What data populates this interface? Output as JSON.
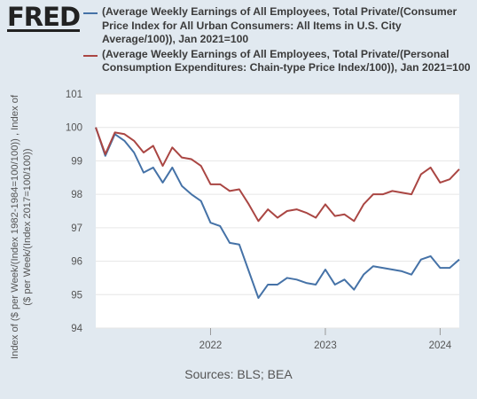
{
  "header": {
    "logo_text": "FRED"
  },
  "legend": [
    {
      "label": "(Average Weekly Earnings of All Employees, Total Private/(Consumer Price Index for All Urban Consumers: All Items in U.S. City Average/100)), Jan 2021=100",
      "color": "#4572a7"
    },
    {
      "label": "(Average Weekly Earnings of All Employees, Total Private/(Personal Consumption Expenditures: Chain-type Price Index/100)), Jan 2021=100",
      "color": "#aa4643"
    }
  ],
  "footer": {
    "source": "Sources: BLS; BEA"
  },
  "chart_data": {
    "type": "line",
    "ylabel": "Index of ($ per Week/(Index 1982-1984=100/100)) , Index of ($ per Week/(Index 2017=100/100))",
    "xlabel": "",
    "ylim": [
      94,
      101
    ],
    "yticks": [
      "94",
      "95",
      "96",
      "97",
      "98",
      "99",
      "100",
      "101"
    ],
    "xticks": [
      "2022",
      "2023",
      "2024"
    ],
    "xrange": [
      "2021-01",
      "2024-03"
    ],
    "x": [
      "2021-01",
      "2021-02",
      "2021-03",
      "2021-04",
      "2021-05",
      "2021-06",
      "2021-07",
      "2021-08",
      "2021-09",
      "2021-10",
      "2021-11",
      "2021-12",
      "2022-01",
      "2022-02",
      "2022-03",
      "2022-04",
      "2022-05",
      "2022-06",
      "2022-07",
      "2022-08",
      "2022-09",
      "2022-10",
      "2022-11",
      "2022-12",
      "2023-01",
      "2023-02",
      "2023-03",
      "2023-04",
      "2023-05",
      "2023-06",
      "2023-07",
      "2023-08",
      "2023-09",
      "2023-10",
      "2023-11",
      "2023-12",
      "2024-01",
      "2024-02",
      "2024-03"
    ],
    "series": [
      {
        "name": "(Average Weekly Earnings of All Employees, Total Private/(Consumer Price Index for All Urban Consumers: All Items in U.S. City Average/100)), Jan 2021=100",
        "color": "#4572a7",
        "values": [
          100.0,
          99.15,
          99.8,
          99.6,
          99.25,
          98.65,
          98.8,
          98.35,
          98.8,
          98.25,
          98.0,
          97.8,
          97.15,
          97.05,
          96.55,
          96.5,
          95.7,
          94.9,
          95.3,
          95.3,
          95.5,
          95.45,
          95.35,
          95.3,
          95.75,
          95.3,
          95.45,
          95.15,
          95.6,
          95.85,
          95.8,
          95.75,
          95.7,
          95.6,
          96.05,
          96.15,
          95.8,
          95.8,
          96.05
        ]
      },
      {
        "name": "(Average Weekly Earnings of All Employees, Total Private/(Personal Consumption Expenditures: Chain-type Price Index/100)), Jan 2021=100",
        "color": "#aa4643",
        "values": [
          100.0,
          99.2,
          99.85,
          99.8,
          99.6,
          99.25,
          99.45,
          98.85,
          99.4,
          99.1,
          99.05,
          98.85,
          98.3,
          98.3,
          98.1,
          98.15,
          97.7,
          97.2,
          97.55,
          97.3,
          97.5,
          97.55,
          97.45,
          97.3,
          97.7,
          97.35,
          97.4,
          97.2,
          97.7,
          98.0,
          98.0,
          98.1,
          98.05,
          98.0,
          98.6,
          98.8,
          98.35,
          98.45,
          98.75
        ]
      }
    ],
    "grid": true
  }
}
